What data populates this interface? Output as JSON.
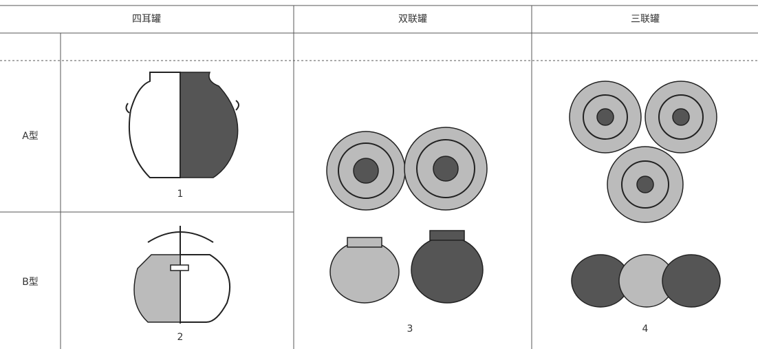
{
  "table": {
    "headers": [
      "四耳罐",
      "双联罐",
      "三联罐"
    ],
    "rows": [
      {
        "label": "A型"
      },
      {
        "label": "B型"
      }
    ]
  },
  "figures": [
    "1",
    "2",
    "3",
    "4"
  ]
}
